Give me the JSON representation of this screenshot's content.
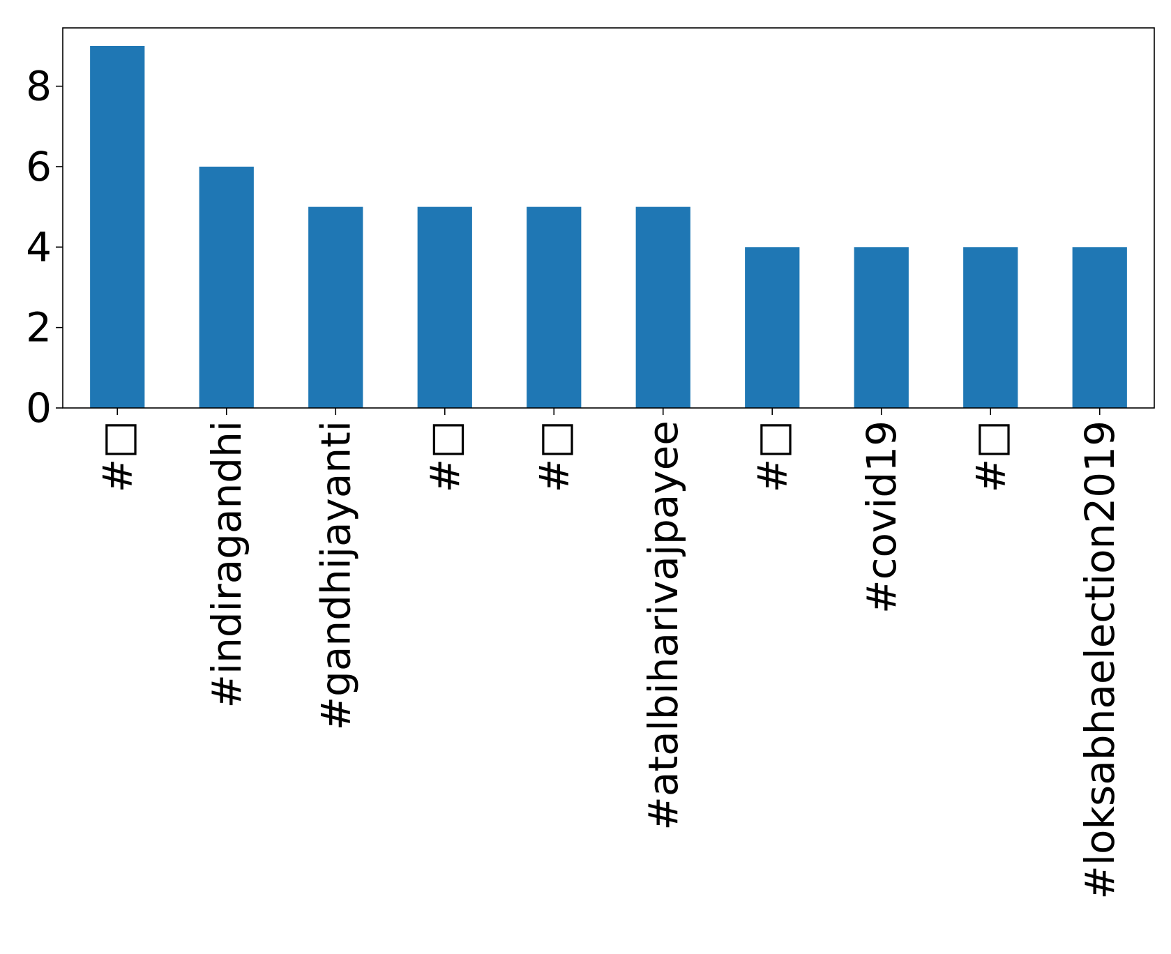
{
  "chart_data": {
    "type": "bar",
    "categories": [
      "#□",
      "#indiragandhi",
      "#gandhijayanti",
      "#□",
      "#□",
      "#atalbiharivajpayee",
      "#□",
      "#covid19",
      "#□",
      "#loksabhaelection2019"
    ],
    "values": [
      9,
      6,
      5,
      5,
      5,
      5,
      4,
      4,
      4,
      4
    ],
    "ylim": [
      0,
      9.45
    ],
    "yticks": [
      "0",
      "2",
      "4",
      "6",
      "8"
    ],
    "bar_color": "#1f77b4",
    "grid": false,
    "legend": "none"
  }
}
